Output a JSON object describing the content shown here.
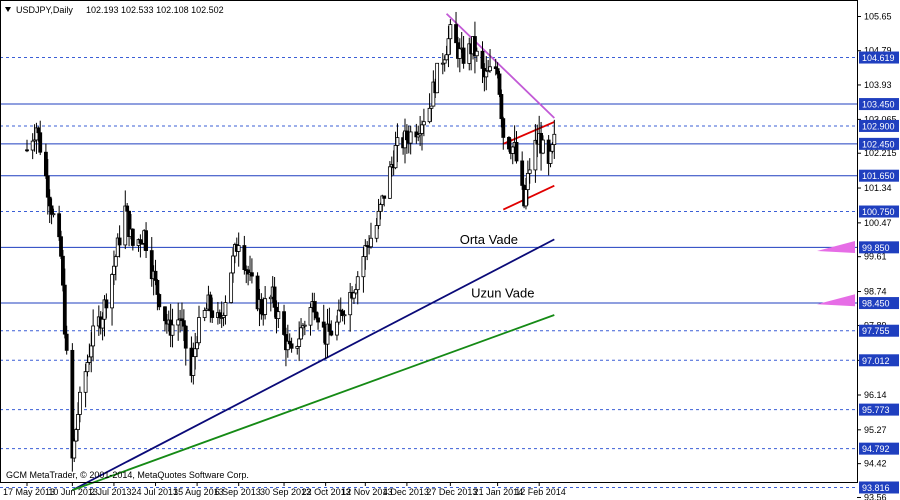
{
  "chart_header": {
    "symbol": "USDJPY,Daily",
    "ohlc": "102.193 102.533 102.108 102.502"
  },
  "footer": "GCM MetaTrader, © 2001-2014, MetaQuotes Software Corp.",
  "colors": {
    "background": "#ffffff",
    "frame": "#000000",
    "candle": "#000000",
    "solid_level": "#1f3fbf",
    "dashed_level": "#3b5fd6",
    "label_box": "#1f3fbf",
    "orta_trend": "#0a0a78",
    "uzun_trend": "#158a15",
    "channel": "#e00000",
    "resistance": "#c25ad6",
    "marker": "#e66de6"
  },
  "chart_data": {
    "type": "candlestick",
    "instrument": "USDJPY",
    "timeframe": "Daily",
    "ylim": [
      93.5,
      106.0
    ],
    "x_tick_labels": [
      "17 May 2013",
      "10 Jun 2013",
      "2 Jul 2013",
      "24 Jul 2013",
      "15 Aug 2013",
      "6 Sep 2013",
      "30 Sep 2013",
      "22 Oct 2013",
      "12 Nov 2013",
      "4 Dec 2013",
      "27 Dec 2013",
      "21 Jan 2014",
      "12 Feb 2014"
    ],
    "y_ticks": [
      105.65,
      104.79,
      103.93,
      103.065,
      102.215,
      101.34,
      100.465,
      99.615,
      98.74,
      97.885,
      97.01,
      96.14,
      95.265,
      94.415,
      93.565
    ],
    "price_levels": [
      {
        "price": 104.619,
        "label": "104.619",
        "style": "dashed"
      },
      {
        "price": 103.45,
        "label": "103.450",
        "style": "solid"
      },
      {
        "price": 102.9,
        "label": "102.900",
        "style": "dashed"
      },
      {
        "price": 102.45,
        "label": "102.450",
        "style": "solid"
      },
      {
        "price": 101.65,
        "label": "101.650",
        "style": "solid"
      },
      {
        "price": 100.75,
        "label": "100.750",
        "style": "dashed"
      },
      {
        "price": 99.85,
        "label": "99.850",
        "style": "solid"
      },
      {
        "price": 98.45,
        "label": "98.450",
        "style": "solid"
      },
      {
        "price": 97.755,
        "label": "97.755",
        "style": "dashed"
      },
      {
        "price": 97.012,
        "label": "97.012",
        "style": "dashed"
      },
      {
        "price": 95.773,
        "label": "95.773",
        "style": "dashed"
      },
      {
        "price": 94.792,
        "label": "94.792",
        "style": "dashed"
      },
      {
        "price": 93.816,
        "label": "93.816",
        "style": "dashed"
      }
    ],
    "trendlines": [
      {
        "name": "orta_trend",
        "from": [
          "10 Jun 2013",
          93.75
        ],
        "to": [
          "20 Feb 2014",
          100.05
        ]
      },
      {
        "name": "uzun_trend",
        "from": [
          "10 Jun 2013",
          93.75
        ],
        "to": [
          "20 Feb 2014",
          98.15
        ]
      },
      {
        "name": "resistance",
        "from": [
          "25 Dec 2013",
          105.72
        ],
        "to": [
          "20 Feb 2014",
          103.1
        ]
      },
      {
        "name": "channel_upper",
        "from": [
          "24 Jan 2014",
          102.45
        ],
        "to": [
          "20 Feb 2014",
          103.0
        ]
      },
      {
        "name": "channel_lower",
        "from": [
          "24 Jan 2014",
          100.8
        ],
        "to": [
          "20 Feb 2014",
          101.4
        ]
      }
    ],
    "annotations": [
      {
        "text": "Orta Vade",
        "date": "7 Feb 2014",
        "price": 99.96
      },
      {
        "text": "Uzun Vade",
        "date": "13 Feb 2014",
        "price": 98.62
      }
    ],
    "close_anchors": [
      [
        "17 May 2013",
        102.3
      ],
      [
        "22 May 2013",
        102.9
      ],
      [
        "29 May 2013",
        101.1
      ],
      [
        "4 Jun 2013",
        99.6
      ],
      [
        "10 Jun 2013",
        94.5
      ],
      [
        "13 Jun 2013",
        95.7
      ],
      [
        "20 Jun 2013",
        97.5
      ],
      [
        "26 Jun 2013",
        98.2
      ],
      [
        "2 Jul 2013",
        99.4
      ],
      [
        "8 Jul 2013",
        100.8
      ],
      [
        "12 Jul 2013",
        99.9
      ],
      [
        "18 Jul 2013",
        100.2
      ],
      [
        "24 Jul 2013",
        98.9
      ],
      [
        "31 Jul 2013",
        97.8
      ],
      [
        "6 Aug 2013",
        98.1
      ],
      [
        "12 Aug 2013",
        96.6
      ],
      [
        "15 Aug 2013",
        97.7
      ],
      [
        "21 Aug 2013",
        98.4
      ],
      [
        "27 Aug 2013",
        97.9
      ],
      [
        "2 Sep 2013",
        99.3
      ],
      [
        "6 Sep 2013",
        100.1
      ],
      [
        "12 Sep 2013",
        99.0
      ],
      [
        "18 Sep 2013",
        98.3
      ],
      [
        "24 Sep 2013",
        98.6
      ],
      [
        "30 Sep 2013",
        97.6
      ],
      [
        "4 Oct 2013",
        97.1
      ],
      [
        "10 Oct 2013",
        97.9
      ],
      [
        "16 Oct 2013",
        98.5
      ],
      [
        "22 Oct 2013",
        97.6
      ],
      [
        "28 Oct 2013",
        97.9
      ],
      [
        "1 Nov 2013",
        98.4
      ],
      [
        "7 Nov 2013",
        99.0
      ],
      [
        "12 Nov 2013",
        99.8
      ],
      [
        "18 Nov 2013",
        100.4
      ],
      [
        "22 Nov 2013",
        101.2
      ],
      [
        "28 Nov 2013",
        102.3
      ],
      [
        "4 Dec 2013",
        102.6
      ],
      [
        "10 Dec 2013",
        102.9
      ],
      [
        "16 Dec 2013",
        103.4
      ],
      [
        "20 Dec 2013",
        104.2
      ],
      [
        "27 Dec 2013",
        105.2
      ],
      [
        "2 Jan 2014",
        104.6
      ],
      [
        "8 Jan 2014",
        104.9
      ],
      [
        "14 Jan 2014",
        104.1
      ],
      [
        "21 Jan 2014",
        104.4
      ],
      [
        "24 Jan 2014",
        102.7
      ],
      [
        "30 Jan 2014",
        102.3
      ],
      [
        "4 Feb 2014",
        100.9
      ],
      [
        "8 Feb 2014",
        102.2
      ],
      [
        "12 Feb 2014",
        102.6
      ],
      [
        "17 Feb 2014",
        101.8
      ],
      [
        "20 Feb 2014",
        102.5
      ]
    ]
  }
}
